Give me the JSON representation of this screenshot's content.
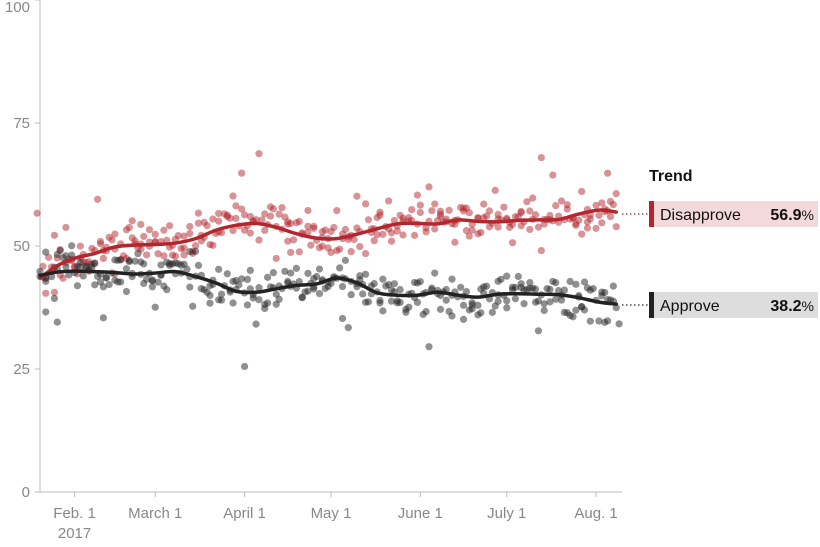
{
  "chart_data": {
    "type": "scatter",
    "title": "",
    "xlabel": "",
    "ylabel": "",
    "ylim": [
      0,
      100
    ],
    "y_ticks": [
      0,
      25,
      50,
      75,
      100
    ],
    "x_range": [
      "2017-01-20",
      "2017-08-10"
    ],
    "x_ticks": [
      {
        "date": "2017-02-01",
        "label": "Feb. 1",
        "sublabel": "2017"
      },
      {
        "date": "2017-03-01",
        "label": "March 1"
      },
      {
        "date": "2017-04-01",
        "label": "April 1"
      },
      {
        "date": "2017-05-01",
        "label": "May 1"
      },
      {
        "date": "2017-06-01",
        "label": "June 1"
      },
      {
        "date": "2017-07-01",
        "label": "July 1"
      },
      {
        "date": "2017-08-01",
        "label": "Aug. 1"
      }
    ],
    "grid": false,
    "legend_title": "Trend",
    "legend_position": "right",
    "series": [
      {
        "name": "Disapprove",
        "value": "56.9",
        "unit": "%",
        "color": "#b3262d",
        "trend": [
          [
            "2017-01-20",
            43.5
          ],
          [
            "2017-01-26",
            46
          ],
          [
            "2017-02-01",
            47.5
          ],
          [
            "2017-02-08",
            48.5
          ],
          [
            "2017-02-15",
            49.8
          ],
          [
            "2017-02-22",
            50.2
          ],
          [
            "2017-03-01",
            50.3
          ],
          [
            "2017-03-08",
            50.6
          ],
          [
            "2017-03-15",
            51.5
          ],
          [
            "2017-03-22",
            53.2
          ],
          [
            "2017-03-29",
            54.2
          ],
          [
            "2017-04-05",
            54.6
          ],
          [
            "2017-04-12",
            53.8
          ],
          [
            "2017-04-19",
            52.5
          ],
          [
            "2017-04-26",
            51.6
          ],
          [
            "2017-05-03",
            51.5
          ],
          [
            "2017-05-10",
            52.4
          ],
          [
            "2017-05-17",
            53.5
          ],
          [
            "2017-05-24",
            54.5
          ],
          [
            "2017-05-31",
            54.6
          ],
          [
            "2017-06-07",
            54.5
          ],
          [
            "2017-06-14",
            55.3
          ],
          [
            "2017-06-21",
            55.0
          ],
          [
            "2017-06-28",
            54.9
          ],
          [
            "2017-07-05",
            55.2
          ],
          [
            "2017-07-12",
            55.3
          ],
          [
            "2017-07-19",
            55.4
          ],
          [
            "2017-07-26",
            56.5
          ],
          [
            "2017-08-02",
            57.3
          ],
          [
            "2017-08-08",
            56.9
          ]
        ],
        "points": []
      },
      {
        "name": "Approve",
        "value": "38.2",
        "unit": "%",
        "color": "#222222",
        "trend": [
          [
            "2017-01-20",
            44.0
          ],
          [
            "2017-01-26",
            44.7
          ],
          [
            "2017-02-01",
            44.9
          ],
          [
            "2017-02-08",
            44.8
          ],
          [
            "2017-02-15",
            44.6
          ],
          [
            "2017-02-22",
            44.3
          ],
          [
            "2017-03-01",
            44.5
          ],
          [
            "2017-03-08",
            44.8
          ],
          [
            "2017-03-15",
            43.8
          ],
          [
            "2017-03-22",
            42.5
          ],
          [
            "2017-03-29",
            40.8
          ],
          [
            "2017-04-05",
            40.6
          ],
          [
            "2017-04-12",
            41.3
          ],
          [
            "2017-04-19",
            42.0
          ],
          [
            "2017-04-26",
            42.3
          ],
          [
            "2017-05-03",
            43.5
          ],
          [
            "2017-05-10",
            42.5
          ],
          [
            "2017-05-17",
            40.5
          ],
          [
            "2017-05-24",
            40.0
          ],
          [
            "2017-05-31",
            40.0
          ],
          [
            "2017-06-07",
            40.6
          ],
          [
            "2017-06-14",
            40.0
          ],
          [
            "2017-06-21",
            39.6
          ],
          [
            "2017-06-28",
            40.2
          ],
          [
            "2017-07-05",
            40.3
          ],
          [
            "2017-07-12",
            40.2
          ],
          [
            "2017-07-19",
            40.1
          ],
          [
            "2017-07-26",
            39.5
          ],
          [
            "2017-08-02",
            38.6
          ],
          [
            "2017-08-08",
            38.2
          ]
        ],
        "points": []
      }
    ]
  }
}
